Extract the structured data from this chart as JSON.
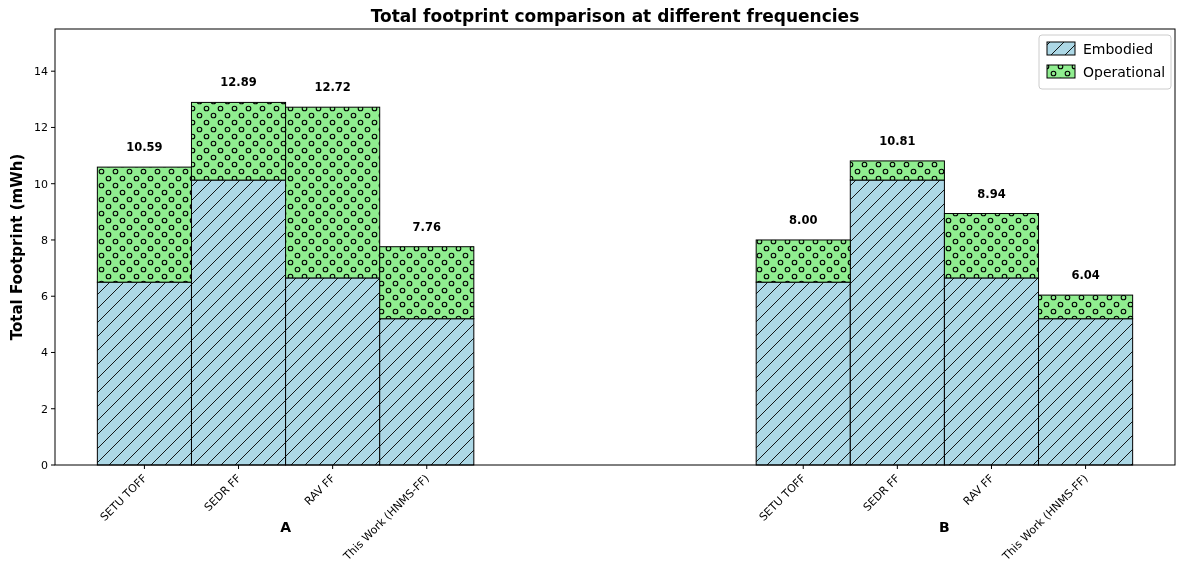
{
  "chart_data": {
    "type": "bar",
    "title": "Total footprint comparison at different frequencies",
    "ylabel": "Total Footprint (mWh)",
    "categories": [
      "SETU TOFF",
      "SEDR FF",
      "RAV FF",
      "This Work (HNMS-FF)",
      null,
      null,
      null,
      "SETU TOFF",
      "SEDR FF",
      "RAV FF",
      "This Work (HNMS-FF)"
    ],
    "stacked": true,
    "series": [
      {
        "name": "Embodied",
        "color": "#add8e6",
        "values": [
          6.5,
          10.13,
          6.65,
          5.2,
          null,
          null,
          null,
          6.5,
          10.13,
          6.65,
          5.2
        ]
      },
      {
        "name": "Operational",
        "color": "#90ee90",
        "values": [
          4.09,
          2.76,
          6.07,
          2.56,
          null,
          null,
          null,
          1.5,
          0.68,
          2.29,
          0.84
        ]
      }
    ],
    "totals": [
      "10.59",
      "12.89",
      "12.72",
      "7.76",
      null,
      null,
      null,
      "8.00",
      "10.81",
      "8.94",
      "6.04"
    ],
    "annotations": [
      "A",
      "B"
    ],
    "ylim": [
      0,
      15.5
    ],
    "yticks": [
      0,
      2,
      4,
      6,
      8,
      10,
      12,
      14
    ],
    "grid": false,
    "legend": "top right"
  }
}
